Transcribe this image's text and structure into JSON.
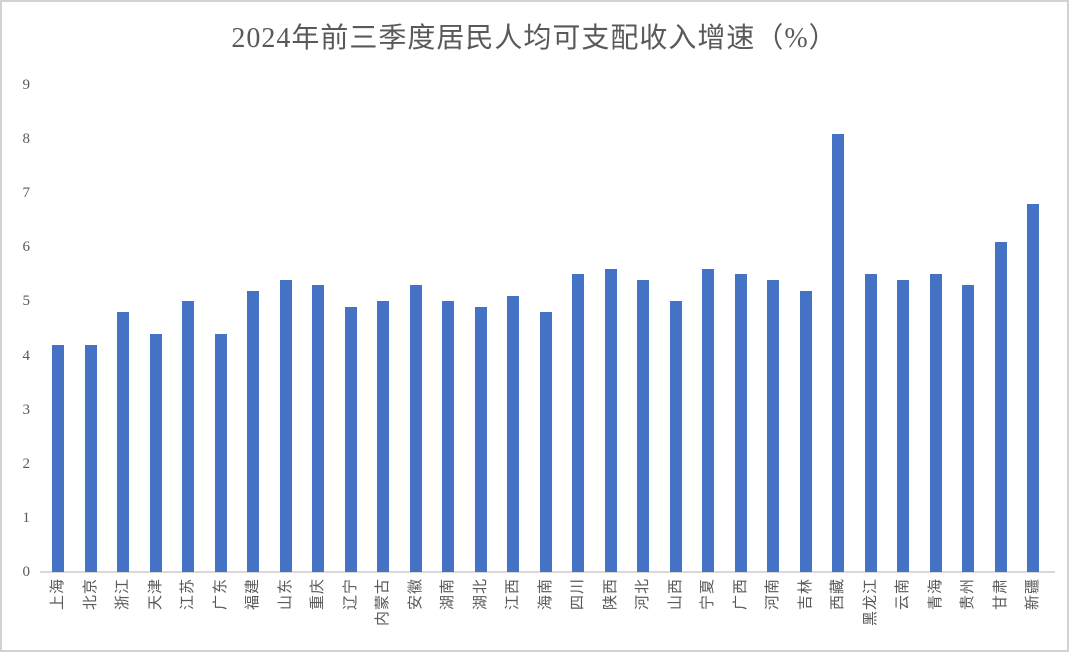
{
  "chart_data": {
    "type": "bar",
    "title": "2024年前三季度居民人均可支配收入增速（%）",
    "categories": [
      "上海",
      "北京",
      "浙江",
      "天津",
      "江苏",
      "广东",
      "福建",
      "山东",
      "重庆",
      "辽宁",
      "内蒙古",
      "安徽",
      "湖南",
      "湖北",
      "江西",
      "海南",
      "四川",
      "陕西",
      "河北",
      "山西",
      "宁夏",
      "广西",
      "河南",
      "吉林",
      "西藏",
      "黑龙江",
      "云南",
      "青海",
      "贵州",
      "甘肃",
      "新疆"
    ],
    "values": [
      4.2,
      4.2,
      4.8,
      4.4,
      5.0,
      4.4,
      5.2,
      5.4,
      5.3,
      4.9,
      5.0,
      5.3,
      5.0,
      4.9,
      5.1,
      4.8,
      5.5,
      5.6,
      5.4,
      5.0,
      5.6,
      5.5,
      5.4,
      5.2,
      8.1,
      5.5,
      5.4,
      5.5,
      5.3,
      6.1,
      6.8
    ],
    "xlabel": "",
    "ylabel": "",
    "ylim": [
      0,
      9
    ],
    "yticks": [
      0,
      1,
      2,
      3,
      4,
      5,
      6,
      7,
      8,
      9
    ],
    "grid": false,
    "legend_position": "none",
    "x_label_rotation": "rotate-up-90",
    "bar_color": "#4472C4",
    "axis_line_color": "#D9D9D9",
    "text_color": "#595959",
    "background_color": "#FFFFFF",
    "frame_border_color": "#D2D2D2"
  }
}
